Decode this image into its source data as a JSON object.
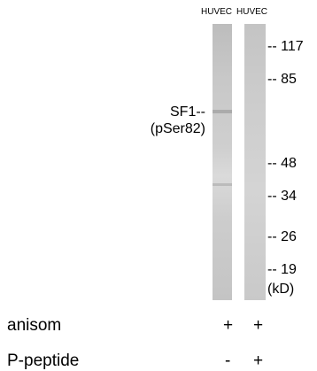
{
  "lanes": [
    "HUVEC",
    "HUVEC"
  ],
  "markers": [
    "-- 117",
    "-- 85",
    "-- 48",
    "-- 34",
    "-- 26",
    "-- 19"
  ],
  "unit": "(kD)",
  "protein": [
    "SF1--",
    "(pSer82)"
  ],
  "treatments": [
    {
      "name": "anisom",
      "signs": [
        "+",
        "+"
      ]
    },
    {
      "name": "P-peptide",
      "signs": [
        "-",
        "+"
      ]
    }
  ]
}
